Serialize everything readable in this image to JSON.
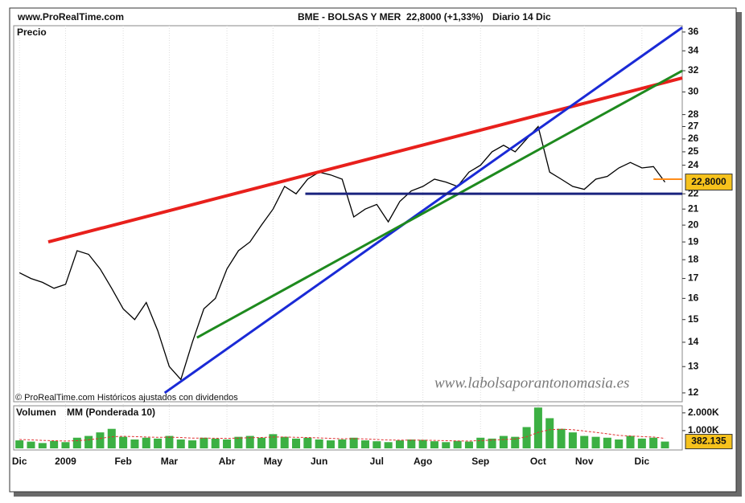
{
  "chart_data": [
    {
      "type": "line",
      "source": "www.ProRealTime.com",
      "title": "BME - BOLSAS Y MER",
      "quote": "22,8000 (+1,33%)",
      "period": "Diario  14 Dic",
      "y_label": "Precio",
      "copyright": "© ProRealTime.com Históricos ajustados con dividendos",
      "watermark": "www.labolsaporantonomasia.es",
      "log_scale": true,
      "grid": true,
      "color": "#000000",
      "categories": [
        "Dic",
        null,
        null,
        null,
        "2009",
        null,
        null,
        null,
        null,
        "Feb",
        null,
        null,
        null,
        "Mar",
        null,
        null,
        null,
        null,
        "Abr",
        null,
        null,
        null,
        "May",
        null,
        null,
        null,
        "Jun",
        null,
        null,
        null,
        null,
        "Jul",
        null,
        null,
        null,
        "Ago",
        null,
        null,
        null,
        null,
        "Sep",
        null,
        null,
        null,
        null,
        "Oct",
        null,
        null,
        null,
        "Nov",
        null,
        null,
        null,
        null,
        "Dic",
        null,
        null,
        null
      ],
      "values": [
        17.3,
        17,
        16.8,
        16.5,
        16.7,
        18.5,
        18.3,
        17.5,
        16.5,
        15.5,
        15,
        15.8,
        14.5,
        13,
        12.5,
        14,
        15.5,
        16,
        17.5,
        18.5,
        19,
        20,
        21,
        22.5,
        22,
        23,
        23.5,
        23.3,
        23,
        20.5,
        21,
        21.3,
        20.2,
        21.5,
        22.2,
        22.5,
        23,
        22.8,
        22.5,
        23.5,
        24,
        25,
        25.5,
        25,
        26,
        27,
        23.5,
        23,
        22.5,
        22.3,
        23,
        23.2,
        23.8,
        24.2,
        23.8,
        23.9,
        22.8,
        null
      ],
      "ylim": [
        11.68,
        36.7
      ],
      "yticks": [
        12,
        13,
        14,
        15,
        16,
        17,
        18,
        19,
        20,
        21,
        22,
        24,
        25,
        26,
        27,
        28,
        30,
        32,
        34,
        36
      ],
      "last_value": {
        "value": 22.8,
        "label": "22,8000"
      },
      "trendlines": [
        {
          "color": "#e8201c",
          "x": [
            2.5,
            57.5
          ],
          "y": [
            19,
            31.3
          ]
        },
        {
          "color": "#1a2ad6",
          "x": [
            12.6,
            57.5
          ],
          "y": [
            12,
            36.5
          ]
        },
        {
          "color": "#1e8a1e",
          "x": [
            15.4,
            57.5
          ],
          "y": [
            14.2,
            32
          ]
        },
        {
          "color": "#1a237e",
          "x": [
            24.8,
            57.5
          ],
          "y": [
            22,
            22
          ]
        },
        {
          "color": "#ff8c1a",
          "x": [
            55,
            57.5
          ],
          "y": [
            23,
            23
          ]
        }
      ]
    },
    {
      "type": "bar",
      "ylim": [
        0,
        2400000
      ],
      "yticks": [
        {
          "value": 2000000,
          "label": "2.000K"
        },
        {
          "value": 1000000,
          "label": "1.000K"
        }
      ],
      "last_value": {
        "value": 382135,
        "label": "382.135"
      },
      "series": [
        {
          "name": "Volumen",
          "color": "#3cb043",
          "values": [
            450000,
            380000,
            300000,
            420000,
            350000,
            600000,
            700000,
            900000,
            1100000,
            650000,
            500000,
            600000,
            550000,
            700000,
            500000,
            450000,
            600000,
            550000,
            500000,
            650000,
            700000,
            600000,
            800000,
            650000,
            550000,
            600000,
            500000,
            450000,
            500000,
            600000,
            450000,
            400000,
            350000,
            450000,
            500000,
            480000,
            400000,
            350000,
            420000,
            380000,
            600000,
            550000,
            700000,
            650000,
            1200000,
            2300000,
            1700000,
            1100000,
            900000,
            700000,
            650000,
            600000,
            500000,
            700000,
            550000,
            600000,
            382135,
            null
          ]
        },
        {
          "name": "MM (Ponderada 10)",
          "color": "#e03030",
          "values": [
            500000,
            480000,
            450000,
            430000,
            410000,
            430000,
            480000,
            560000,
            650000,
            680000,
            660000,
            640000,
            620000,
            630000,
            610000,
            580000,
            580000,
            570000,
            560000,
            580000,
            600000,
            610000,
            640000,
            640000,
            620000,
            610000,
            590000,
            560000,
            540000,
            550000,
            530000,
            500000,
            470000,
            460000,
            460000,
            460000,
            450000,
            430000,
            420000,
            410000,
            440000,
            460000,
            500000,
            530000,
            650000,
            900000,
            1050000,
            1080000,
            1050000,
            980000,
            900000,
            820000,
            730000,
            700000,
            660000,
            640000,
            560000,
            null
          ]
        }
      ]
    }
  ]
}
